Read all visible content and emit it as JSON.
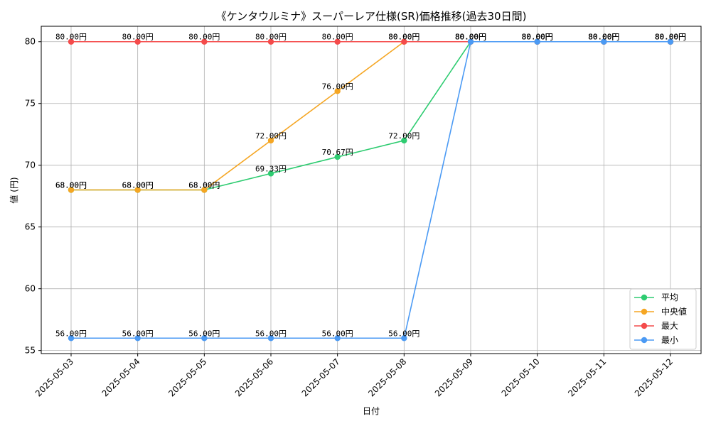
{
  "chart_data": {
    "type": "line",
    "title": "《ケンタウルミナ》スーパーレア仕様(SR)価格推移(過去30日間)",
    "xlabel": "日付",
    "ylabel": "値 (円)",
    "ylim": [
      54.75,
      81.25
    ],
    "yticks": [
      55,
      60,
      65,
      70,
      75,
      80
    ],
    "grid": true,
    "legend_position": "bottom-right",
    "categories": [
      "2025-05-03",
      "2025-05-04",
      "2025-05-05",
      "2025-05-06",
      "2025-05-07",
      "2025-05-08",
      "2025-05-09",
      "2025-05-10",
      "2025-05-11",
      "2025-05-12"
    ],
    "value_suffix": "円",
    "series": [
      {
        "name": "平均",
        "color": "#2ecc71",
        "values": [
          68.0,
          68.0,
          68.0,
          69.33,
          70.67,
          72.0,
          80.0,
          80.0,
          80.0,
          80.0
        ]
      },
      {
        "name": "中央値",
        "color": "#f5a623",
        "values": [
          68.0,
          68.0,
          68.0,
          72.0,
          76.0,
          80.0,
          80.0,
          80.0,
          80.0,
          80.0
        ]
      },
      {
        "name": "最大",
        "color": "#f44b4b",
        "values": [
          80.0,
          80.0,
          80.0,
          80.0,
          80.0,
          80.0,
          80.0,
          80.0,
          80.0,
          80.0
        ]
      },
      {
        "name": "最小",
        "color": "#4b9af4",
        "values": [
          56.0,
          56.0,
          56.0,
          56.0,
          56.0,
          56.0,
          80.0,
          80.0,
          80.0,
          80.0
        ]
      }
    ]
  }
}
